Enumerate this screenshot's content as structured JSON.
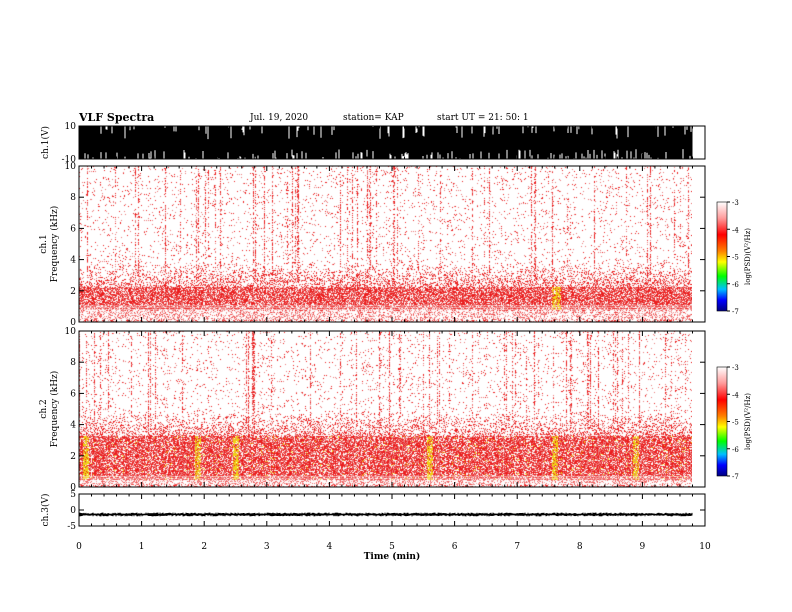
{
  "header": {
    "title": "VLF Spectra",
    "date": "Jul. 19, 2020",
    "station": "station= KAP",
    "start": "start UT = 21: 50: 1"
  },
  "chart_data": [
    {
      "type": "line",
      "panel": "ch1-waveform",
      "ylabel": "ch.1(V)",
      "ylim": [
        -10,
        10
      ],
      "yticks": [
        "10",
        "-10"
      ],
      "xlim": [
        0,
        10
      ],
      "description_series": "dense saturated waveform spanning -10 to 10 V",
      "x": [
        0,
        1,
        2,
        3,
        4,
        5,
        6,
        7,
        8,
        9,
        9.8
      ],
      "ymin": [
        -10,
        -10,
        -10,
        -10,
        -10,
        -10,
        -10,
        -10,
        -10,
        -10,
        -10
      ],
      "ymax": [
        10,
        10,
        10,
        10,
        10,
        10,
        10,
        10,
        10,
        10,
        10
      ]
    },
    {
      "type": "heatmap",
      "panel": "ch1-spectrogram",
      "ylabel_line1": "ch.1",
      "ylabel_line2": "Frequency (kHz)",
      "ylim": [
        0,
        10
      ],
      "yticks": [
        "0",
        "2",
        "4",
        "6",
        "8",
        "10"
      ],
      "xlim": [
        0,
        9.8
      ],
      "band_khz": [
        0.8,
        2.3
      ],
      "peak_times_min": [
        7.6,
        7.65
      ],
      "colorbar": {
        "label": "log(PSD)(V²/Hz)",
        "range": [
          -7,
          -3
        ],
        "ticks": [
          "-3",
          "-4",
          "-5",
          "-6",
          "-7"
        ]
      }
    },
    {
      "type": "heatmap",
      "panel": "ch2-spectrogram",
      "ylabel_line1": "ch.2",
      "ylabel_line2": "Frequency (kHz)",
      "ylim": [
        0,
        10
      ],
      "yticks": [
        "0",
        "2",
        "4",
        "6",
        "8",
        "10"
      ],
      "xlim": [
        0,
        9.8
      ],
      "band_khz": [
        0.5,
        3.3
      ],
      "peak_times_min": [
        0.1,
        1.9,
        2.5,
        5.6,
        7.6,
        8.9
      ],
      "colorbar": {
        "label": "log(PSD)(V²/Hz)",
        "range": [
          -7,
          -3
        ],
        "ticks": [
          "-3",
          "-4",
          "-5",
          "-6",
          "-7"
        ]
      }
    },
    {
      "type": "line",
      "panel": "ch3-waveform",
      "ylabel": "ch.3(V)",
      "ylim": [
        -5,
        5
      ],
      "yticks": [
        "5",
        "0",
        "-5"
      ],
      "xlim": [
        0,
        10
      ],
      "x": [
        0,
        2,
        4,
        6,
        8,
        9.8
      ],
      "ymin": [
        -1.8,
        -1.8,
        -1.8,
        -1.8,
        -1.8,
        -1.8
      ],
      "ymax": [
        -1.0,
        -1.0,
        -1.0,
        -1.0,
        -1.0,
        -1.0
      ]
    }
  ],
  "xaxis": {
    "label": "Time (min)",
    "ticks": [
      "0",
      "1",
      "2",
      "3",
      "4",
      "5",
      "6",
      "7",
      "8",
      "9",
      "10"
    ]
  }
}
